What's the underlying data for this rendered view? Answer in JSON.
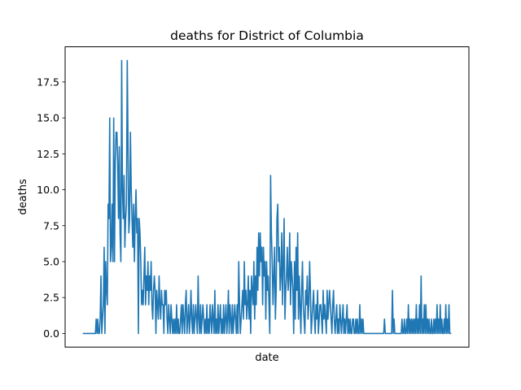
{
  "chart_data": {
    "type": "line",
    "title": "deaths for District of Columbia",
    "xlabel": "date",
    "ylabel": "deaths",
    "ylim": [
      -0.95,
      19.95
    ],
    "yticks": [
      0.0,
      2.5,
      5.0,
      7.5,
      10.0,
      12.5,
      15.0,
      17.5
    ],
    "ytick_labels": [
      "0.0",
      "2.5",
      "5.0",
      "7.5",
      "10.0",
      "12.5",
      "15.0",
      "17.5"
    ],
    "xticks_visible": false,
    "grid": false,
    "legend": "none",
    "series": [
      {
        "color": "#1f77b4",
        "values": [
          0,
          0,
          0,
          0,
          0,
          0,
          0,
          0,
          0,
          0,
          0,
          0,
          0,
          0,
          0,
          0,
          1,
          0,
          1,
          0,
          0,
          1,
          4,
          0,
          1,
          2,
          6,
          0,
          5,
          3,
          2,
          9,
          8,
          15,
          5,
          6,
          9,
          5,
          15,
          5,
          12,
          14,
          14,
          12,
          8,
          13,
          7,
          5,
          19,
          10,
          8,
          11,
          6,
          8,
          9,
          19,
          13,
          7,
          8,
          14,
          10,
          8,
          6,
          9,
          5,
          8,
          10,
          7,
          8,
          0,
          8,
          7,
          5,
          2,
          3,
          2,
          4,
          6,
          2,
          4,
          3,
          5,
          2,
          4,
          3,
          5,
          2,
          1,
          3,
          4,
          3,
          0,
          3,
          2,
          1,
          4,
          2,
          1,
          3,
          2,
          2,
          0,
          3,
          2,
          3,
          1,
          0,
          2,
          1,
          0,
          2,
          1,
          0,
          1,
          0,
          1,
          0,
          2,
          0,
          1,
          0,
          0,
          1,
          2,
          0,
          2,
          1,
          0,
          2,
          3,
          0,
          1,
          2,
          0,
          1,
          3,
          1,
          0,
          2,
          0,
          1,
          2,
          1,
          0,
          4,
          1,
          0,
          2,
          0,
          1,
          2,
          1,
          0,
          1,
          0,
          2,
          0,
          1,
          0,
          2,
          1,
          0,
          2,
          1,
          0,
          3,
          0,
          1,
          0,
          2,
          0,
          1,
          2,
          0,
          1,
          0,
          2,
          0,
          1,
          2,
          0,
          1,
          3,
          0,
          2,
          1,
          0,
          2,
          0,
          1,
          2,
          1,
          0,
          2,
          0,
          5,
          2,
          0,
          1,
          2,
          3,
          1,
          5,
          2,
          3,
          1,
          2,
          4,
          1,
          3,
          0,
          4,
          3,
          2,
          5,
          1,
          4,
          2,
          6,
          3,
          7,
          4,
          7,
          5,
          6,
          2,
          6,
          4,
          5,
          1,
          5,
          3,
          4,
          2,
          0,
          11,
          7,
          5,
          2,
          4,
          6,
          1,
          3,
          8,
          9,
          5,
          6,
          3,
          4,
          7,
          2,
          5,
          8,
          1,
          3,
          4,
          6,
          3,
          4,
          7,
          2,
          5,
          4,
          3,
          0,
          5,
          1,
          6,
          3,
          7,
          1,
          4,
          2,
          0,
          3,
          5,
          2,
          1,
          0,
          3,
          2,
          4,
          1,
          2,
          5,
          3,
          0,
          1,
          2,
          3,
          1,
          0,
          2,
          1,
          3,
          0,
          1,
          2,
          2,
          1,
          0,
          3,
          1,
          2,
          1,
          0,
          3,
          1,
          2,
          3,
          2,
          1,
          0,
          2,
          3,
          1,
          0,
          1,
          2,
          0,
          1,
          0,
          2,
          1,
          0,
          1,
          2,
          0,
          1,
          0,
          1,
          2,
          0,
          1,
          0,
          1,
          0,
          0,
          1,
          1,
          0,
          0,
          1,
          0,
          1,
          0,
          0,
          2,
          0,
          1,
          0,
          1,
          0,
          0,
          0,
          0,
          0,
          0,
          0,
          0,
          0,
          0,
          0,
          0,
          0,
          0,
          0,
          0,
          0,
          0,
          0,
          0,
          0,
          0,
          0,
          0,
          0,
          0,
          1,
          0,
          0,
          0,
          0,
          0,
          0,
          0,
          0,
          0,
          3,
          0,
          1,
          0,
          0,
          0,
          0,
          0,
          0,
          0,
          0,
          0,
          1,
          0,
          0,
          1,
          0,
          0,
          1,
          0,
          2,
          0,
          1,
          0,
          1,
          0,
          1,
          0,
          1,
          0,
          2,
          0,
          1,
          0,
          2,
          0,
          4,
          0,
          1,
          0,
          2,
          0,
          2,
          0,
          1,
          0,
          1,
          0,
          0,
          1,
          0,
          0,
          1,
          0,
          1,
          0,
          2,
          0,
          1,
          0,
          2,
          0,
          1,
          0,
          0,
          1,
          0,
          2,
          0,
          1,
          0,
          2,
          0,
          0
        ]
      }
    ]
  }
}
